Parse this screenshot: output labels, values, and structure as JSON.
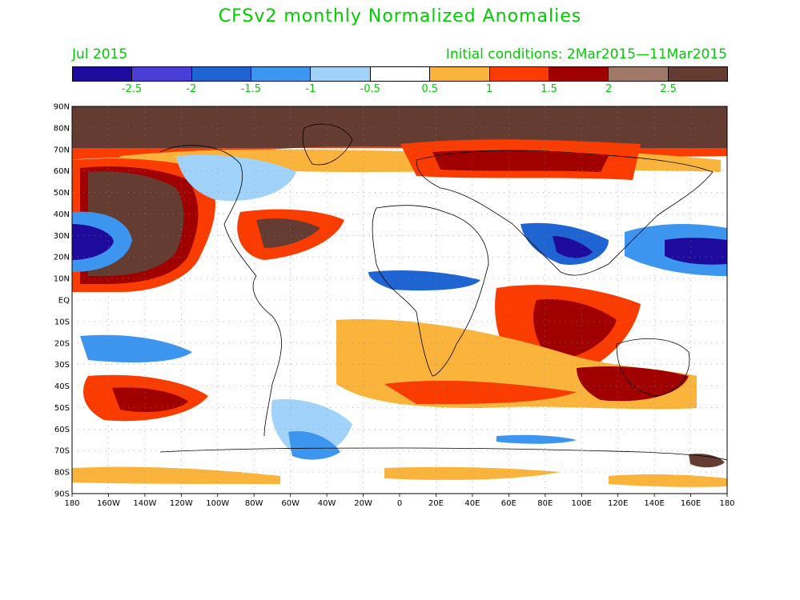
{
  "title": "CFSv2 monthly Normalized Anomalies",
  "month": "Jul 2015",
  "initial_conditions": "Initial conditions: 2Mar2015—11Mar2015",
  "legend": {
    "colors": [
      "#1e0a9c",
      "#4a3ed6",
      "#1e64d2",
      "#3c96f0",
      "#a0d2fa",
      "#ffffff",
      "#fab43c",
      "#fa3c00",
      "#a00000",
      "#a07868",
      "#643c32"
    ],
    "labels": [
      "-2.5",
      "-2",
      "-1.5",
      "-1",
      "-0.5",
      "0.5",
      "1",
      "1.5",
      "2",
      "2.5"
    ]
  },
  "axes": {
    "lat_ticks": [
      "90N",
      "80N",
      "70N",
      "60N",
      "50N",
      "40N",
      "30N",
      "20N",
      "10N",
      "EQ",
      "10S",
      "20S",
      "30S",
      "40S",
      "50S",
      "60S",
      "70S",
      "80S",
      "90S"
    ],
    "lon_ticks": [
      "180",
      "160W",
      "140W",
      "120W",
      "100W",
      "80W",
      "60W",
      "40W",
      "20W",
      "0",
      "20E",
      "40E",
      "60E",
      "80E",
      "100E",
      "120E",
      "140E",
      "160E",
      "180"
    ]
  }
}
